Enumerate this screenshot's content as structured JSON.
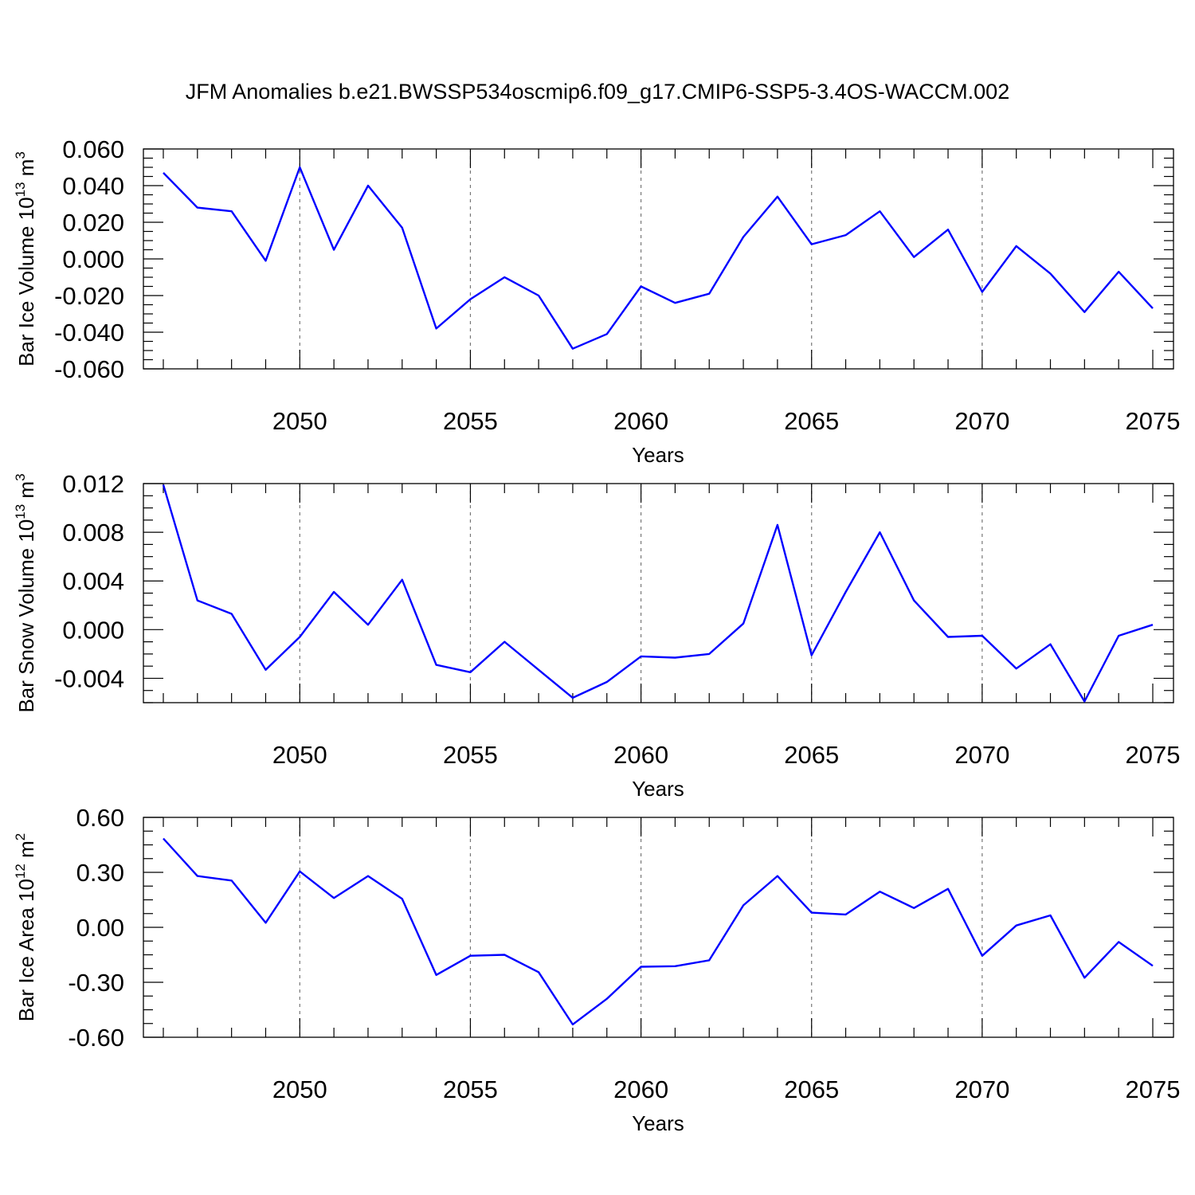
{
  "title": "JFM Anomalies b.e21.BWSSP534oscmip6.f09_g17.CMIP6-SSP5-3.4OS-WACCM.002",
  "style": {
    "line_color": "#0000ff",
    "grid_color": "#777777"
  },
  "chart_data": [
    {
      "type": "line",
      "xlabel": "Years",
      "ylabel": "Bar Ice Volume 10",
      "ylabel_exp": "13",
      "ylabel_unit": " m",
      "ylabel_unit_exp": "3",
      "xlim": [
        2046,
        2075
      ],
      "ylim": [
        -0.06,
        0.06
      ],
      "yticks": [
        -0.06,
        -0.04,
        -0.02,
        0.0,
        0.02,
        0.04,
        0.06
      ],
      "ytick_labels": [
        "-0.060",
        "-0.040",
        "-0.020",
        "0.000",
        "0.020",
        "0.040",
        "0.060"
      ],
      "xticks": [
        2050,
        2055,
        2060,
        2065,
        2070,
        2075
      ],
      "xtick_labels": [
        "2050",
        "2055",
        "2060",
        "2065",
        "2070",
        "2075"
      ],
      "grid_x": [
        2050,
        2055,
        2060,
        2065,
        2070
      ],
      "x": [
        2046,
        2047,
        2048,
        2049,
        2050,
        2051,
        2052,
        2053,
        2054,
        2055,
        2056,
        2057,
        2058,
        2059,
        2060,
        2061,
        2062,
        2063,
        2064,
        2065,
        2066,
        2067,
        2068,
        2069,
        2070,
        2071,
        2072,
        2073,
        2074,
        2075
      ],
      "values": [
        0.047,
        0.028,
        0.026,
        -0.001,
        0.05,
        0.005,
        0.04,
        0.017,
        -0.038,
        -0.022,
        -0.01,
        -0.02,
        -0.049,
        -0.041,
        -0.015,
        -0.024,
        -0.019,
        0.012,
        0.034,
        0.008,
        0.013,
        0.026,
        0.001,
        0.016,
        -0.018,
        0.007,
        -0.008,
        -0.029,
        -0.007,
        -0.027
      ]
    },
    {
      "type": "line",
      "xlabel": "Years",
      "ylabel": "Bar Snow Volume 10",
      "ylabel_exp": "13",
      "ylabel_unit": " m",
      "ylabel_unit_exp": "3",
      "xlim": [
        2046,
        2075
      ],
      "ylim": [
        -0.006,
        0.012
      ],
      "yticks": [
        -0.004,
        0.0,
        0.004,
        0.008,
        0.012
      ],
      "ytick_labels": [
        "-0.004",
        "0.000",
        "0.004",
        "0.008",
        "0.012"
      ],
      "xticks": [
        2050,
        2055,
        2060,
        2065,
        2070,
        2075
      ],
      "xtick_labels": [
        "2050",
        "2055",
        "2060",
        "2065",
        "2070",
        "2075"
      ],
      "grid_x": [
        2050,
        2055,
        2060,
        2065,
        2070
      ],
      "x": [
        2046,
        2047,
        2048,
        2049,
        2050,
        2051,
        2052,
        2053,
        2054,
        2055,
        2056,
        2057,
        2058,
        2059,
        2060,
        2061,
        2062,
        2063,
        2064,
        2065,
        2066,
        2067,
        2068,
        2069,
        2070,
        2071,
        2072,
        2073,
        2074,
        2075
      ],
      "values": [
        0.0119,
        0.0024,
        0.0013,
        -0.0033,
        -0.0006,
        0.0031,
        0.0004,
        0.0041,
        -0.0029,
        -0.0035,
        -0.001,
        -0.0033,
        -0.0056,
        -0.0043,
        -0.0022,
        -0.0023,
        -0.002,
        0.0005,
        0.0086,
        -0.0021,
        0.0031,
        0.008,
        0.0024,
        -0.0006,
        -0.0005,
        -0.0032,
        -0.0012,
        -0.0059,
        -0.0005,
        0.0004
      ]
    },
    {
      "type": "line",
      "xlabel": "Years",
      "ylabel": "Bar Ice Area 10",
      "ylabel_exp": "12",
      "ylabel_unit": " m",
      "ylabel_unit_exp": "2",
      "xlim": [
        2046,
        2075
      ],
      "ylim": [
        -0.6,
        0.6
      ],
      "yticks": [
        -0.6,
        -0.3,
        0.0,
        0.3,
        0.6
      ],
      "ytick_labels": [
        "-0.60",
        "-0.30",
        "0.00",
        "0.30",
        "0.60"
      ],
      "xticks": [
        2050,
        2055,
        2060,
        2065,
        2070,
        2075
      ],
      "xtick_labels": [
        "2050",
        "2055",
        "2060",
        "2065",
        "2070",
        "2075"
      ],
      "grid_x": [
        2050,
        2055,
        2060,
        2065,
        2070
      ],
      "x": [
        2046,
        2047,
        2048,
        2049,
        2050,
        2051,
        2052,
        2053,
        2054,
        2055,
        2056,
        2057,
        2058,
        2059,
        2060,
        2061,
        2062,
        2063,
        2064,
        2065,
        2066,
        2067,
        2068,
        2069,
        2070,
        2071,
        2072,
        2073,
        2074,
        2075
      ],
      "values": [
        0.485,
        0.28,
        0.255,
        0.025,
        0.305,
        0.16,
        0.28,
        0.155,
        -0.26,
        -0.155,
        -0.15,
        -0.245,
        -0.53,
        -0.39,
        -0.215,
        -0.212,
        -0.18,
        0.12,
        0.28,
        0.08,
        0.07,
        0.195,
        0.105,
        0.21,
        -0.155,
        0.01,
        0.065,
        -0.275,
        -0.08,
        -0.21
      ]
    }
  ]
}
